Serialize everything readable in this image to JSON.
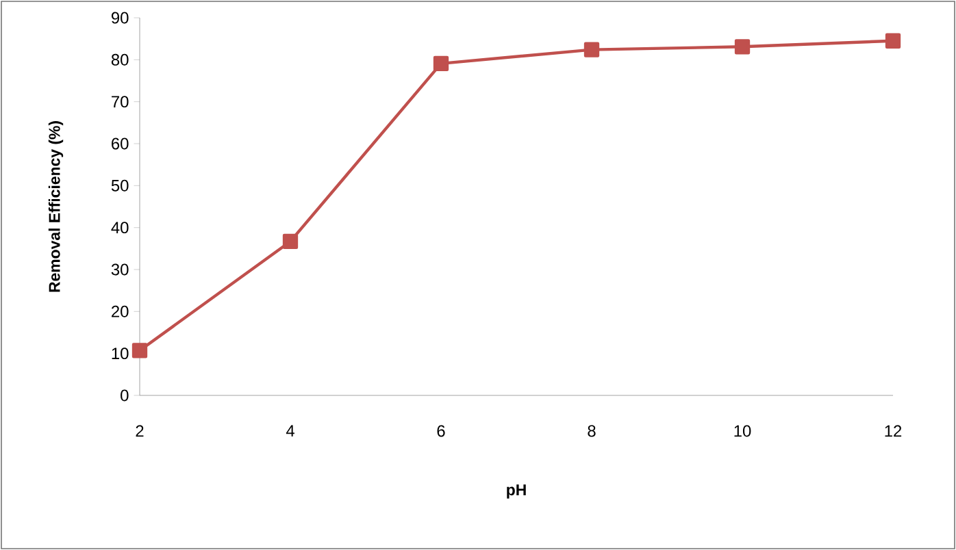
{
  "chart_data": {
    "type": "line",
    "xlabel": "pH",
    "ylabel": "Removal Efficiency (%)",
    "x": [
      2,
      4,
      6,
      8,
      10,
      12
    ],
    "series": [
      {
        "color": "#c0504d",
        "values": [
          10.7,
          36.7,
          79.1,
          82.4,
          83.1,
          84.5
        ]
      }
    ],
    "xlim": [
      2,
      12
    ],
    "xticks": [
      2,
      4,
      6,
      8,
      10,
      12
    ],
    "ylim": [
      0,
      90
    ],
    "yticks": [
      0,
      10,
      20,
      30,
      40,
      50,
      60,
      70,
      80,
      90
    ],
    "grid": false,
    "marker": "square",
    "line_style": "solid"
  }
}
